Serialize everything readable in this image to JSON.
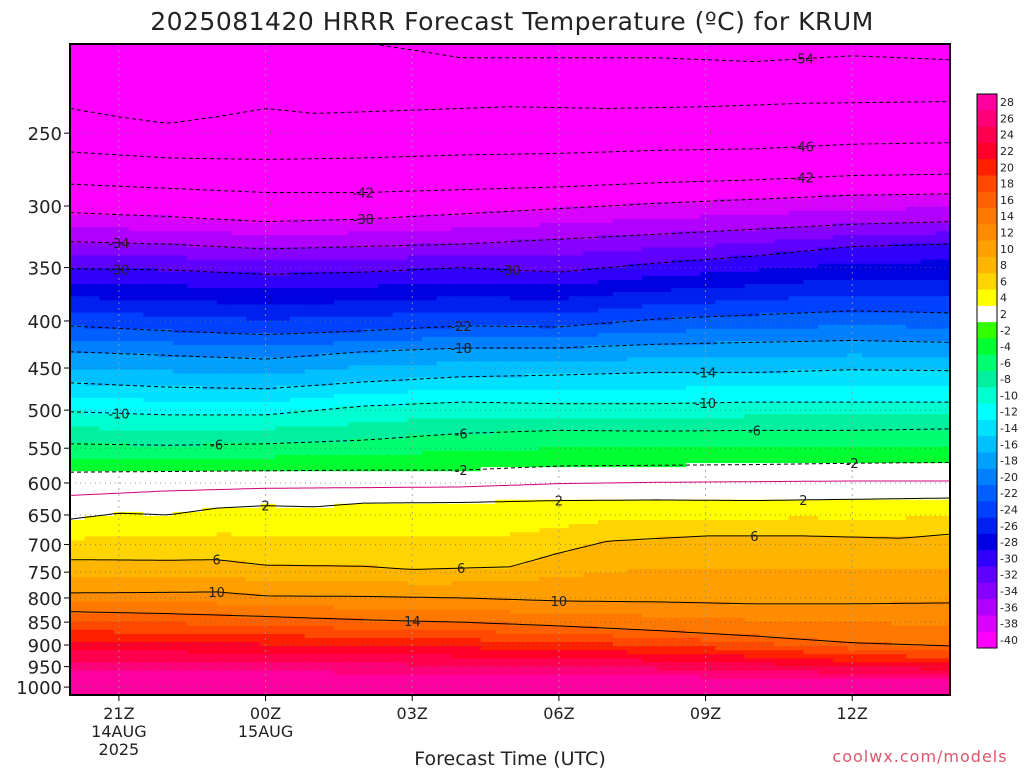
{
  "title": "2025081420 HRRR Forecast Temperature (ºC) for KRUM",
  "watermark": "coolwx.com/models",
  "colors": {
    "watermark": "#e0556b",
    "ground": "#a0522d"
  },
  "chart_data": {
    "type": "heatmap",
    "title": "2025081420 HRRR Forecast Temperature (ºC) for KRUM",
    "xlabel": "Forecast Time (UTC)",
    "ylabel": "",
    "x_ticks": [
      {
        "hour": 1,
        "lines": [
          "21Z",
          "14AUG",
          "2025"
        ]
      },
      {
        "hour": 4,
        "lines": [
          "00Z",
          "15AUG"
        ]
      },
      {
        "hour": 7,
        "lines": [
          "03Z"
        ]
      },
      {
        "hour": 10,
        "lines": [
          "06Z"
        ]
      },
      {
        "hour": 13,
        "lines": [
          "09Z"
        ]
      },
      {
        "hour": 16,
        "lines": [
          "12Z"
        ]
      }
    ],
    "xlim": [
      0,
      18
    ],
    "ylim_hpa": [
      1020,
      200
    ],
    "y_scale": "log-pressure",
    "y_ticks": [
      250,
      300,
      350,
      400,
      450,
      500,
      550,
      600,
      650,
      700,
      750,
      800,
      850,
      900,
      950,
      1000
    ],
    "grid": true,
    "colorbar": {
      "levels": [
        28,
        26,
        24,
        22,
        20,
        18,
        16,
        14,
        12,
        10,
        8,
        6,
        4,
        2,
        -2,
        -4,
        -6,
        -8,
        -10,
        -12,
        -14,
        -16,
        -18,
        -20,
        -22,
        -24,
        -26,
        -28,
        -30,
        -32,
        -34,
        -36,
        -38,
        -40
      ],
      "colors": [
        "#ff00a0",
        "#ff0078",
        "#ff0050",
        "#ff0028",
        "#ff2000",
        "#ff4800",
        "#ff6000",
        "#ff7800",
        "#ff8c00",
        "#ffa000",
        "#ffb400",
        "#ffd400",
        "#ffff00",
        "#ffffff",
        "#32ff00",
        "#00ff30",
        "#00ff70",
        "#00f0a0",
        "#00ffd0",
        "#00ffff",
        "#00e0ff",
        "#00c0ff",
        "#00a0ff",
        "#0080ff",
        "#0060ff",
        "#0040ff",
        "#0020f0",
        "#0000e0",
        "#3000ff",
        "#6000ff",
        "#8800ff",
        "#b000ff",
        "#d800ff",
        "#ff00ff"
      ]
    },
    "contours": [
      {
        "value": -54,
        "label": "-54",
        "label_hour": 15.0,
        "points": [
          [
            6.2,
            200
          ],
          [
            7,
            203
          ],
          [
            8,
            207
          ],
          [
            10,
            207
          ],
          [
            12,
            207
          ],
          [
            14,
            209
          ],
          [
            16,
            206
          ],
          [
            18,
            208
          ]
        ]
      },
      {
        "value": -50,
        "label": "",
        "points": [
          [
            0,
            235
          ],
          [
            1,
            240
          ],
          [
            2,
            244
          ],
          [
            3,
            240
          ],
          [
            4,
            235
          ],
          [
            5,
            238
          ],
          [
            7,
            236
          ],
          [
            9,
            234
          ],
          [
            11,
            235
          ],
          [
            13,
            234
          ],
          [
            15,
            232
          ],
          [
            18,
            231
          ]
        ]
      },
      {
        "value": -46,
        "label": "-46",
        "label_hour": 15.0,
        "points": [
          [
            0,
            262
          ],
          [
            2,
            266
          ],
          [
            4,
            267
          ],
          [
            6,
            266
          ],
          [
            8,
            264
          ],
          [
            10,
            263
          ],
          [
            12,
            261
          ],
          [
            14,
            260
          ],
          [
            16,
            257
          ],
          [
            18,
            256
          ]
        ]
      },
      {
        "value": -42,
        "label": "-42",
        "label_hour": 6.0,
        "points": [
          [
            0,
            284
          ],
          [
            2,
            287
          ],
          [
            4,
            290
          ],
          [
            6,
            290
          ],
          [
            8,
            288
          ],
          [
            10,
            286
          ],
          [
            12,
            283
          ],
          [
            14,
            281
          ],
          [
            16,
            278
          ],
          [
            18,
            277
          ]
        ]
      },
      {
        "value": -42,
        "label": "-42",
        "label_hour": 15.0,
        "points": []
      },
      {
        "value": -38,
        "label": "-38",
        "label_hour": 6.0,
        "points": [
          [
            0,
            305
          ],
          [
            2,
            308
          ],
          [
            4,
            312
          ],
          [
            6,
            310
          ],
          [
            8,
            306
          ],
          [
            10,
            302
          ],
          [
            12,
            298
          ],
          [
            14,
            295
          ],
          [
            16,
            292
          ],
          [
            18,
            291
          ]
        ]
      },
      {
        "value": -34,
        "label": "-34",
        "label_hour": 1.0,
        "points": [
          [
            0,
            328
          ],
          [
            2,
            330
          ],
          [
            4,
            334
          ],
          [
            6,
            332
          ],
          [
            8,
            330
          ],
          [
            10,
            326
          ],
          [
            12,
            322
          ],
          [
            14,
            318
          ],
          [
            16,
            314
          ],
          [
            18,
            312
          ]
        ]
      },
      {
        "value": -30,
        "label": "-30",
        "label_hour": 1.0,
        "points": [
          [
            0,
            351
          ],
          [
            2,
            352
          ],
          [
            4,
            356
          ],
          [
            6,
            354
          ],
          [
            8,
            350
          ],
          [
            10,
            354
          ],
          [
            12,
            346
          ],
          [
            14,
            340
          ],
          [
            16,
            332
          ],
          [
            18,
            330
          ]
        ]
      },
      {
        "value": -30,
        "label": "-30",
        "label_hour": 9.0,
        "points": []
      },
      {
        "value": -22,
        "label": "-22",
        "label_hour": 8.0,
        "points": [
          [
            0,
            405
          ],
          [
            2,
            410
          ],
          [
            4,
            414
          ],
          [
            6,
            410
          ],
          [
            8,
            405
          ],
          [
            10,
            406
          ],
          [
            12,
            398
          ],
          [
            14,
            394
          ],
          [
            16,
            390
          ],
          [
            18,
            392
          ]
        ]
      },
      {
        "value": -18,
        "label": "-18",
        "label_hour": 8.0,
        "points": [
          [
            0,
            432
          ],
          [
            2,
            436
          ],
          [
            4,
            440
          ],
          [
            6,
            432
          ],
          [
            8,
            428
          ],
          [
            10,
            428
          ],
          [
            12,
            424
          ],
          [
            14,
            422
          ],
          [
            16,
            420
          ],
          [
            18,
            422
          ]
        ]
      },
      {
        "value": -14,
        "label": "-14",
        "label_hour": 13.0,
        "points": [
          [
            0,
            467
          ],
          [
            2,
            472
          ],
          [
            4,
            474
          ],
          [
            6,
            466
          ],
          [
            8,
            460
          ],
          [
            10,
            458
          ],
          [
            12,
            455
          ],
          [
            14,
            455
          ],
          [
            16,
            452
          ],
          [
            18,
            453
          ]
        ]
      },
      {
        "value": -10,
        "label": "-10",
        "label_hour": 1.0,
        "points": [
          [
            0,
            502
          ],
          [
            2,
            506
          ],
          [
            4,
            506
          ],
          [
            6,
            495
          ],
          [
            8,
            490
          ],
          [
            10,
            492
          ],
          [
            12,
            492
          ],
          [
            14,
            490
          ],
          [
            16,
            490
          ],
          [
            18,
            490
          ]
        ]
      },
      {
        "value": -10,
        "label": "-10",
        "label_hour": 13.0,
        "points": []
      },
      {
        "value": -6,
        "label": "-6",
        "label_hour": 3.0,
        "points": [
          [
            0,
            544
          ],
          [
            2,
            546
          ],
          [
            4,
            544
          ],
          [
            6,
            539
          ],
          [
            8,
            530
          ],
          [
            10,
            526
          ],
          [
            12,
            527
          ],
          [
            14,
            526
          ],
          [
            16,
            526
          ],
          [
            18,
            524
          ]
        ]
      },
      {
        "value": -6,
        "label": "-6",
        "label_hour": 8.0,
        "points": []
      },
      {
        "value": -6,
        "label": "-6",
        "label_hour": 14.0,
        "points": []
      },
      {
        "value": -2,
        "label": "-2",
        "label_hour": 8.0,
        "points": [
          [
            0,
            584
          ],
          [
            2,
            583
          ],
          [
            4,
            582
          ],
          [
            6,
            581
          ],
          [
            8,
            581
          ],
          [
            10,
            575
          ],
          [
            12,
            574
          ],
          [
            14,
            573
          ],
          [
            16,
            571
          ],
          [
            18,
            570
          ]
        ]
      },
      {
        "value": -2,
        "label": "-2",
        "label_hour": 16.0,
        "points": []
      },
      {
        "value": 0,
        "label": "",
        "color": "#d0007a",
        "points": [
          [
            0,
            619
          ],
          [
            2,
            612
          ],
          [
            4,
            608
          ],
          [
            6,
            607
          ],
          [
            8,
            606
          ],
          [
            10,
            601
          ],
          [
            12,
            599
          ],
          [
            14,
            598
          ],
          [
            16,
            597
          ],
          [
            18,
            597
          ]
        ]
      },
      {
        "value": 2,
        "label": "2",
        "label_hour": 4.0,
        "points": [
          [
            0,
            657
          ],
          [
            1,
            647
          ],
          [
            2,
            650
          ],
          [
            3,
            639
          ],
          [
            4,
            635
          ],
          [
            5,
            637
          ],
          [
            6,
            631
          ],
          [
            8,
            630
          ],
          [
            10,
            627
          ],
          [
            12,
            626
          ],
          [
            14,
            627
          ],
          [
            16,
            625
          ],
          [
            18,
            623
          ]
        ]
      },
      {
        "value": 2,
        "label": "2",
        "label_hour": 10.0,
        "points": []
      },
      {
        "value": 2,
        "label": "2",
        "label_hour": 15.0,
        "points": []
      },
      {
        "value": 6,
        "label": "6",
        "label_hour": 3.0,
        "points": [
          [
            0,
            727
          ],
          [
            2,
            728
          ],
          [
            3,
            727
          ],
          [
            4,
            737
          ],
          [
            6,
            739
          ],
          [
            7,
            745
          ],
          [
            9,
            740
          ],
          [
            10,
            715
          ],
          [
            11,
            694
          ],
          [
            13,
            685
          ],
          [
            15,
            685
          ],
          [
            17,
            689
          ],
          [
            18,
            682
          ]
        ]
      },
      {
        "value": 6,
        "label": "6",
        "label_hour": 8.0,
        "points": []
      },
      {
        "value": 6,
        "label": "6",
        "label_hour": 14.0,
        "points": []
      },
      {
        "value": 10,
        "label": "10",
        "label_hour": 3.0,
        "points": [
          [
            0,
            790
          ],
          [
            2,
            789
          ],
          [
            3,
            788
          ],
          [
            4,
            796
          ],
          [
            6,
            797
          ],
          [
            8,
            800
          ],
          [
            10,
            806
          ],
          [
            12,
            808
          ],
          [
            14,
            812
          ],
          [
            16,
            812
          ],
          [
            18,
            810
          ]
        ]
      },
      {
        "value": 10,
        "label": "10",
        "label_hour": 10.0,
        "points": []
      },
      {
        "value": 14,
        "label": "14",
        "label_hour": 7.0,
        "points": [
          [
            0,
            828
          ],
          [
            2,
            832
          ],
          [
            4,
            838
          ],
          [
            6,
            845
          ],
          [
            8,
            850
          ],
          [
            10,
            858
          ],
          [
            12,
            868
          ],
          [
            14,
            880
          ],
          [
            16,
            895
          ],
          [
            18,
            902
          ]
        ]
      }
    ]
  }
}
